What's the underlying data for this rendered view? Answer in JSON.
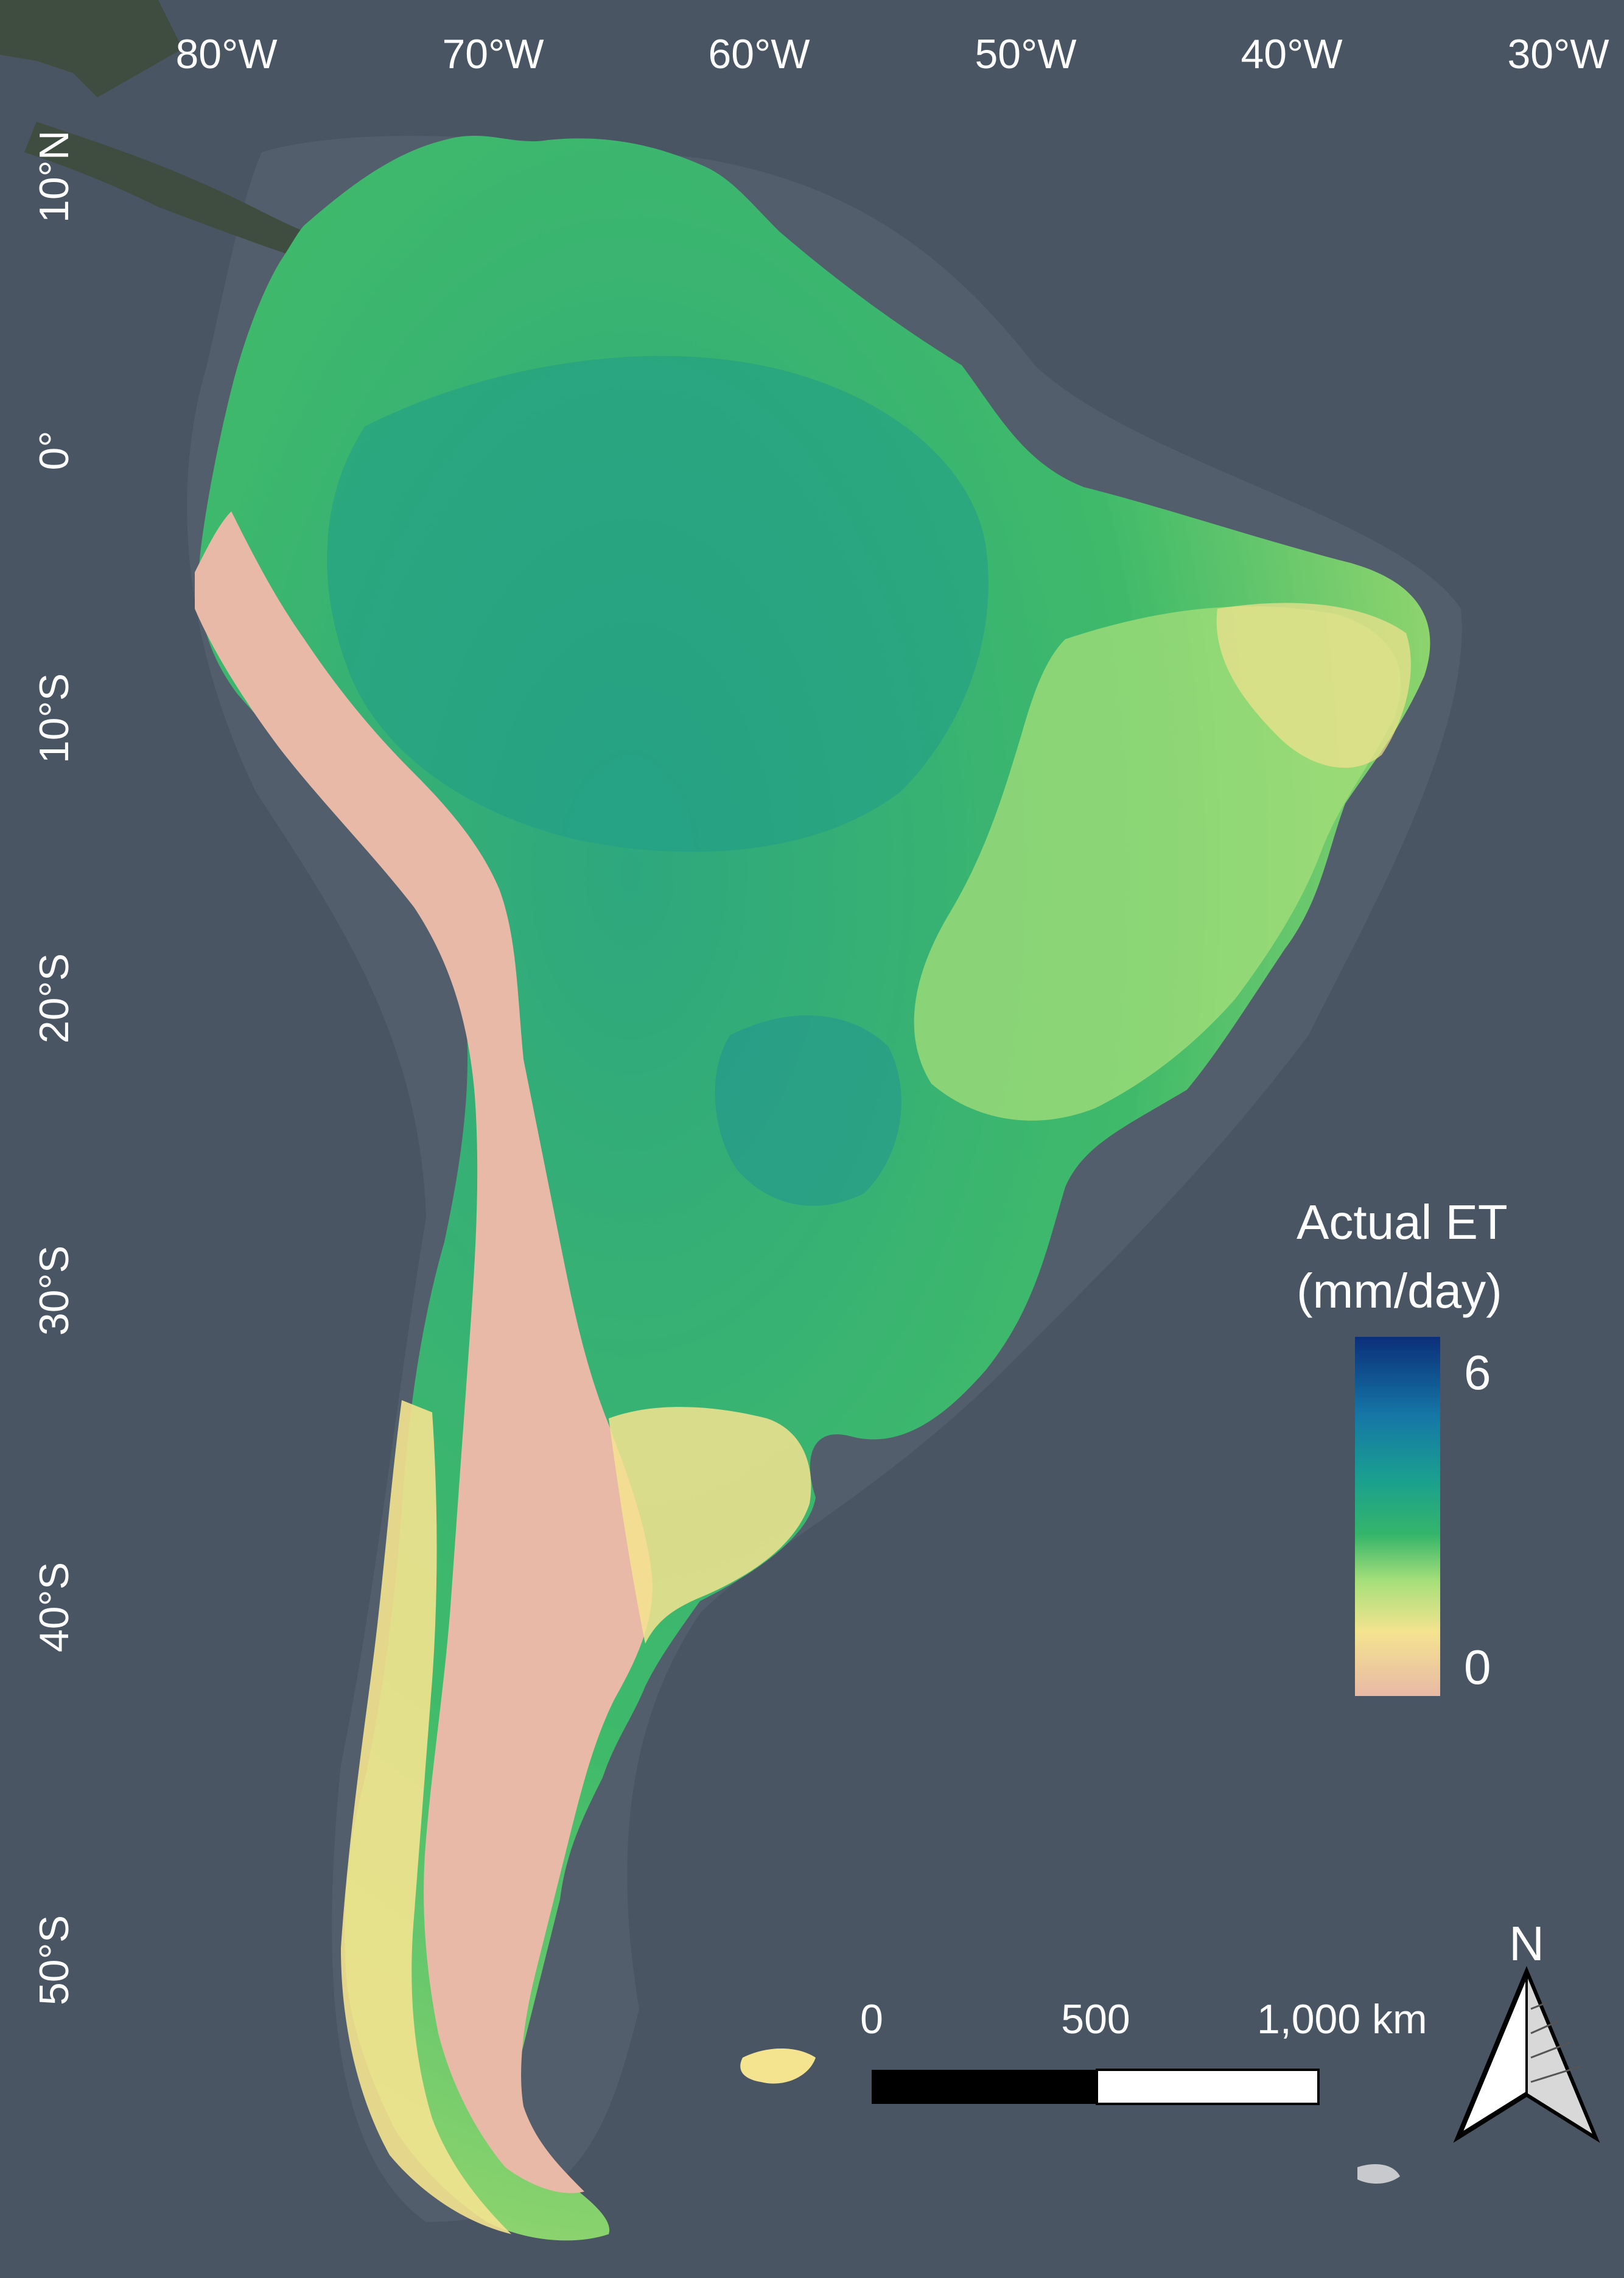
{
  "map": {
    "longitude_labels": [
      "80°W",
      "70°W",
      "60°W",
      "50°W",
      "40°W",
      "30°W"
    ],
    "latitude_labels": [
      "10°N",
      "0°",
      "10°S",
      "20°S",
      "30°S",
      "40°S",
      "50°S"
    ]
  },
  "legend": {
    "title_line1": "Actual ET",
    "title_line2": "(mm/day)",
    "max_label": "6",
    "min_label": "0",
    "ramp_colors": [
      "#0b2f7a",
      "#1577a6",
      "#1aa08f",
      "#35b56a",
      "#a6df7a",
      "#f4e38f",
      "#e8b9a6"
    ]
  },
  "scale_bar": {
    "labels": [
      "0",
      "500",
      "1,000 km"
    ],
    "colors": [
      "#000000",
      "#ffffff"
    ]
  },
  "north_arrow": {
    "label": "N"
  },
  "colors": {
    "ocean": "#4a5563",
    "ocean_shelf": "#5b6776",
    "land_background": "#3e4d3f",
    "arid": "#e8b9a6",
    "dry": "#f4e38f",
    "moderate": "#9fd86c",
    "wet": "#3fbf6e",
    "very_wet": "#1aa08f"
  }
}
